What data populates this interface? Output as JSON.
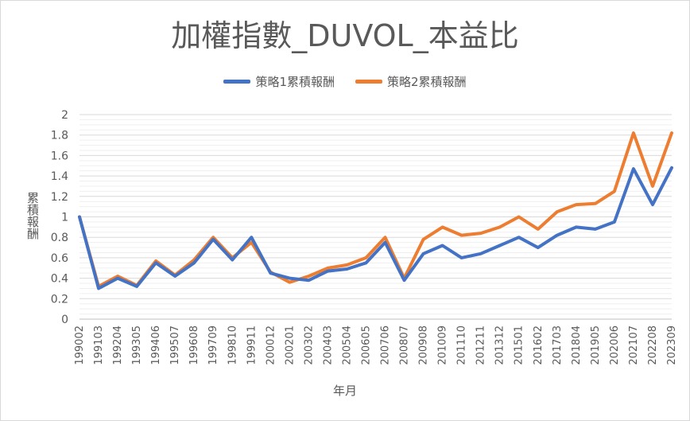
{
  "chart_data": {
    "type": "line",
    "title": "加權指數_DUVOL_本益比",
    "xlabel": "年月",
    "ylabel": "累積報酬",
    "ylim": [
      0,
      2
    ],
    "y_ticks": [
      "0",
      "0.2",
      "0.4",
      "0.6",
      "0.8",
      "1",
      "1.2",
      "1.4",
      "1.6",
      "1.8",
      "2"
    ],
    "grid": "horizontal",
    "legend_position": "top",
    "x_tick_labels": [
      "199002",
      "199103",
      "199204",
      "199305",
      "199406",
      "199507",
      "199608",
      "199709",
      "199810",
      "199911",
      "200012",
      "200201",
      "200302",
      "200403",
      "200504",
      "200605",
      "200706",
      "200807",
      "200908",
      "201009",
      "201110",
      "201211",
      "201312",
      "201501",
      "201602",
      "201703",
      "201804",
      "201905",
      "202006",
      "202107",
      "202208",
      "202309"
    ],
    "x": [
      "199002",
      "199103",
      "199204",
      "199305",
      "199406",
      "199507",
      "199608",
      "199709",
      "199810",
      "199911",
      "200012",
      "200201",
      "200302",
      "200403",
      "200504",
      "200605",
      "200706",
      "200807",
      "200908",
      "201009",
      "201110",
      "201211",
      "201312",
      "201501",
      "201602",
      "201703",
      "201804",
      "201905",
      "202006",
      "202107",
      "202208",
      "202309"
    ],
    "series": [
      {
        "name": "策略1累積報酬",
        "color": "#4472c4",
        "values": [
          1.0,
          0.3,
          0.4,
          0.32,
          0.55,
          0.42,
          0.55,
          0.78,
          0.58,
          0.8,
          0.45,
          0.4,
          0.38,
          0.47,
          0.49,
          0.55,
          0.75,
          0.38,
          0.64,
          0.72,
          0.6,
          0.64,
          0.72,
          0.8,
          0.7,
          0.82,
          0.9,
          0.88,
          0.95,
          1.47,
          1.12,
          1.48
        ]
      },
      {
        "name": "策略2累積報酬",
        "color": "#ed7d31",
        "values": [
          1.0,
          0.32,
          0.42,
          0.33,
          0.57,
          0.43,
          0.58,
          0.8,
          0.6,
          0.75,
          0.46,
          0.36,
          0.42,
          0.5,
          0.53,
          0.6,
          0.8,
          0.4,
          0.78,
          0.9,
          0.82,
          0.84,
          0.9,
          1.0,
          0.88,
          1.05,
          1.12,
          1.13,
          1.25,
          1.82,
          1.3,
          1.82
        ]
      }
    ]
  }
}
